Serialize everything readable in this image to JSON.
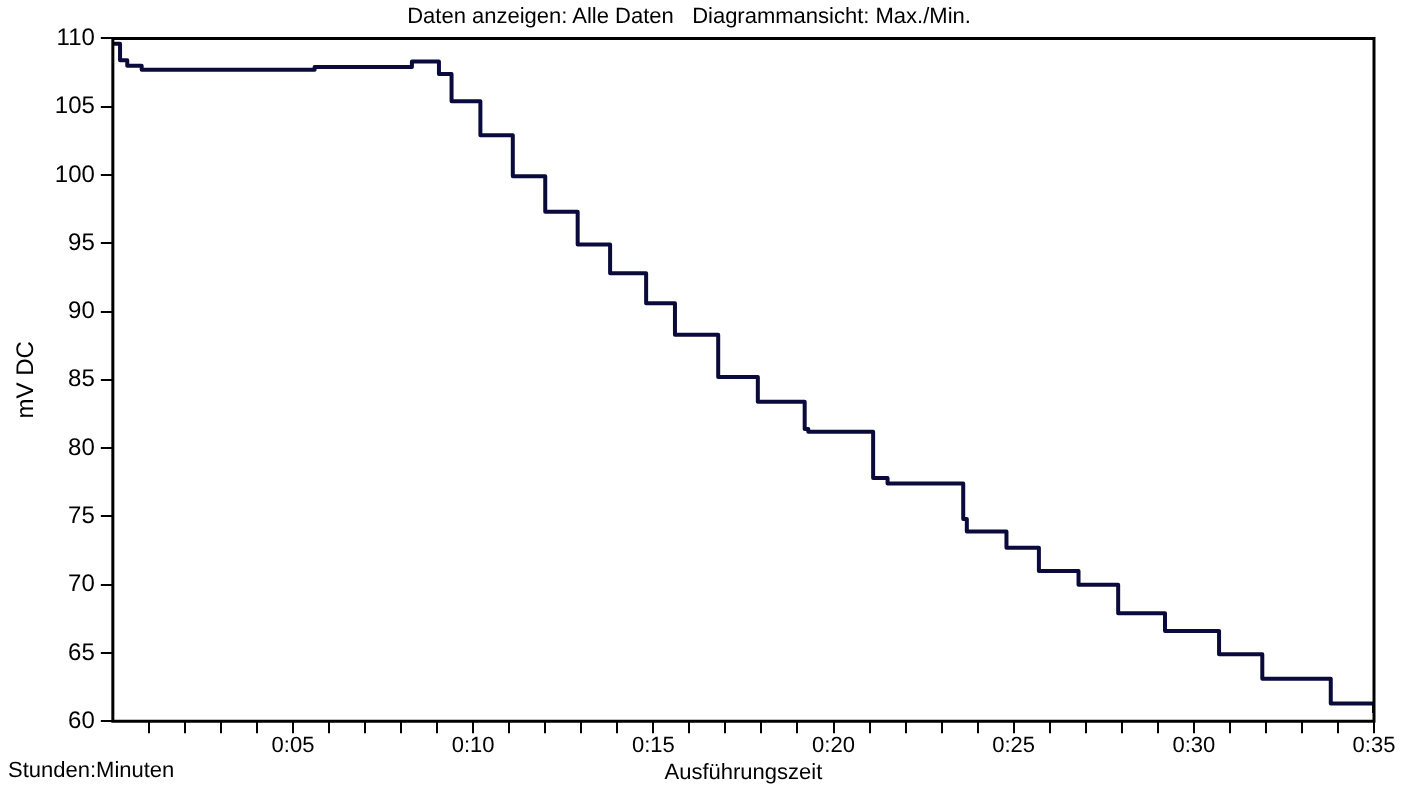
{
  "chart_data": {
    "type": "step",
    "title": "Daten anzeigen: Alle Daten   Diagrammansicht: Max./Min.",
    "xlabel": "Ausführungszeit",
    "ylabel": "mV DC",
    "annotations": [
      "Stunden:Minuten"
    ],
    "x": [
      0,
      0.2,
      0.4,
      0.8,
      2.9,
      5.6,
      8.3,
      8.9,
      9.05,
      9.4,
      10.2,
      11.1,
      12.0,
      12.9,
      13.8,
      14.8,
      15.6,
      16.8,
      17.9,
      19.2,
      19.3,
      21.1,
      21.5,
      23.6,
      23.7,
      24.8,
      25.7,
      26.8,
      27.9,
      29.2,
      30.7,
      31.9,
      33.8,
      35
    ],
    "series": [
      {
        "color": "#0a0a3c",
        "values": [
          109.6,
          108.4,
          108.0,
          107.7,
          107.7,
          107.9,
          108.3,
          108.3,
          107.4,
          105.4,
          102.9,
          99.9,
          97.3,
          94.9,
          92.8,
          90.6,
          88.3,
          85.2,
          83.4,
          81.4,
          81.2,
          77.8,
          77.4,
          74.8,
          73.9,
          72.7,
          71.0,
          70.0,
          67.9,
          66.6,
          64.9,
          63.1,
          61.3,
          60.6
        ]
      }
    ],
    "xlim": [
      0,
      35
    ],
    "ylim": [
      60,
      110
    ],
    "xticks": [
      {
        "value": 1,
        "label": null
      },
      {
        "value": 2,
        "label": null
      },
      {
        "value": 3,
        "label": null
      },
      {
        "value": 4,
        "label": null
      },
      {
        "value": 5,
        "label": "0:05"
      },
      {
        "value": 6,
        "label": null
      },
      {
        "value": 7,
        "label": null
      },
      {
        "value": 8,
        "label": null
      },
      {
        "value": 9,
        "label": null
      },
      {
        "value": 10,
        "label": "0:10"
      },
      {
        "value": 11,
        "label": null
      },
      {
        "value": 12,
        "label": null
      },
      {
        "value": 13,
        "label": null
      },
      {
        "value": 14,
        "label": null
      },
      {
        "value": 15,
        "label": "0:15"
      },
      {
        "value": 16,
        "label": null
      },
      {
        "value": 17,
        "label": null
      },
      {
        "value": 18,
        "label": null
      },
      {
        "value": 19,
        "label": null
      },
      {
        "value": 20,
        "label": "0:20"
      },
      {
        "value": 21,
        "label": null
      },
      {
        "value": 22,
        "label": null
      },
      {
        "value": 23,
        "label": null
      },
      {
        "value": 24,
        "label": null
      },
      {
        "value": 25,
        "label": "0:25"
      },
      {
        "value": 26,
        "label": null
      },
      {
        "value": 27,
        "label": null
      },
      {
        "value": 28,
        "label": null
      },
      {
        "value": 29,
        "label": null
      },
      {
        "value": 30,
        "label": "0:30"
      },
      {
        "value": 31,
        "label": null
      },
      {
        "value": 32,
        "label": null
      },
      {
        "value": 33,
        "label": null
      },
      {
        "value": 34,
        "label": null
      },
      {
        "value": 35,
        "label": "0:35"
      }
    ],
    "yticks": [
      60,
      65,
      70,
      75,
      80,
      85,
      90,
      95,
      100,
      105,
      110
    ],
    "grid": false,
    "legend": false,
    "marker": "none",
    "line_style": "solid"
  }
}
